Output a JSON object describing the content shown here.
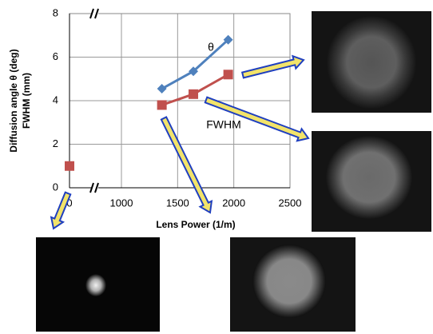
{
  "chart_data": {
    "type": "line",
    "xlabel": "Lens Power (1/m)",
    "ylabel": [
      "Diffusion angle θ (deg)",
      "FWHM (mm)"
    ],
    "xlim": [
      0,
      2500
    ],
    "xticks": [
      0,
      1000,
      1500,
      2000,
      2500
    ],
    "ylim": [
      0,
      8
    ],
    "yticks": [
      0,
      2,
      4,
      6,
      8
    ],
    "grid": true,
    "x_axis_break": true,
    "series": [
      {
        "name": "θ",
        "color": "#4f81bd",
        "marker": "diamond",
        "x": [
          1360,
          1640,
          1950
        ],
        "values": [
          4.55,
          5.35,
          6.8
        ]
      },
      {
        "name": "FWHM",
        "color": "#c0504d",
        "marker": "square",
        "x": [
          0,
          1360,
          1640,
          1950
        ],
        "values": [
          1.0,
          3.8,
          4.3,
          5.2
        ]
      }
    ]
  }
}
